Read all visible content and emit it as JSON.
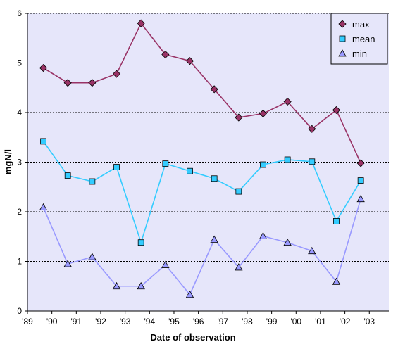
{
  "chart_data": {
    "type": "line",
    "title": "",
    "xlabel": "Date of observation",
    "ylabel": "mgN/l",
    "x_tick_labels": [
      "'89",
      "'90",
      "'91",
      "'92",
      "'93",
      "'94",
      "'95",
      "'96",
      "'97",
      "'98",
      "'99",
      "'00",
      "'01",
      "'02",
      "'03"
    ],
    "x_range": [
      1989,
      2003.8
    ],
    "ylim": [
      0,
      6
    ],
    "y_ticks": [
      0,
      1,
      2,
      3,
      4,
      5,
      6
    ],
    "y_tick_labels": [
      "0",
      "1",
      "2",
      "3",
      "4",
      "5",
      "6"
    ],
    "grid": "horizontal dashed",
    "plot_background": "#e6e6fa",
    "legend_position": "top-right",
    "x": [
      1989.65,
      1990.65,
      1991.65,
      1992.65,
      1993.65,
      1994.65,
      1995.65,
      1996.65,
      1997.65,
      1998.65,
      1999.65,
      2000.65,
      2001.65,
      2002.65
    ],
    "series": [
      {
        "name": "max",
        "color": "#993366",
        "marker": "diamond",
        "values": [
          4.9,
          4.6,
          4.6,
          4.78,
          5.8,
          5.17,
          5.04,
          4.47,
          3.9,
          3.98,
          4.22,
          3.67,
          4.05,
          2.98
        ]
      },
      {
        "name": "mean",
        "color": "#33ccff",
        "marker": "square",
        "values": [
          3.42,
          2.73,
          2.61,
          2.9,
          1.38,
          2.97,
          2.82,
          2.67,
          2.41,
          2.95,
          3.05,
          3.01,
          1.81,
          2.63
        ]
      },
      {
        "name": "min",
        "color": "#9999ff",
        "marker": "triangle",
        "values": [
          2.09,
          0.95,
          1.09,
          0.5,
          0.5,
          0.93,
          0.33,
          1.44,
          0.88,
          1.51,
          1.38,
          1.21,
          0.59,
          2.26
        ]
      }
    ]
  }
}
